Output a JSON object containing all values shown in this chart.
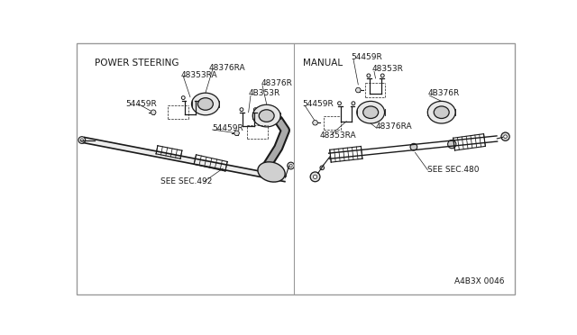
{
  "background_color": "#ffffff",
  "border_color": "#aaaaaa",
  "diagram_id": "A4B3X 0046",
  "left_section_label": "POWER STEERING",
  "right_section_label": "MANUAL",
  "text_color": "#1a1a1a",
  "line_color": "#1a1a1a",
  "font_size": 6.5,
  "section_label_font_size": 7.5
}
